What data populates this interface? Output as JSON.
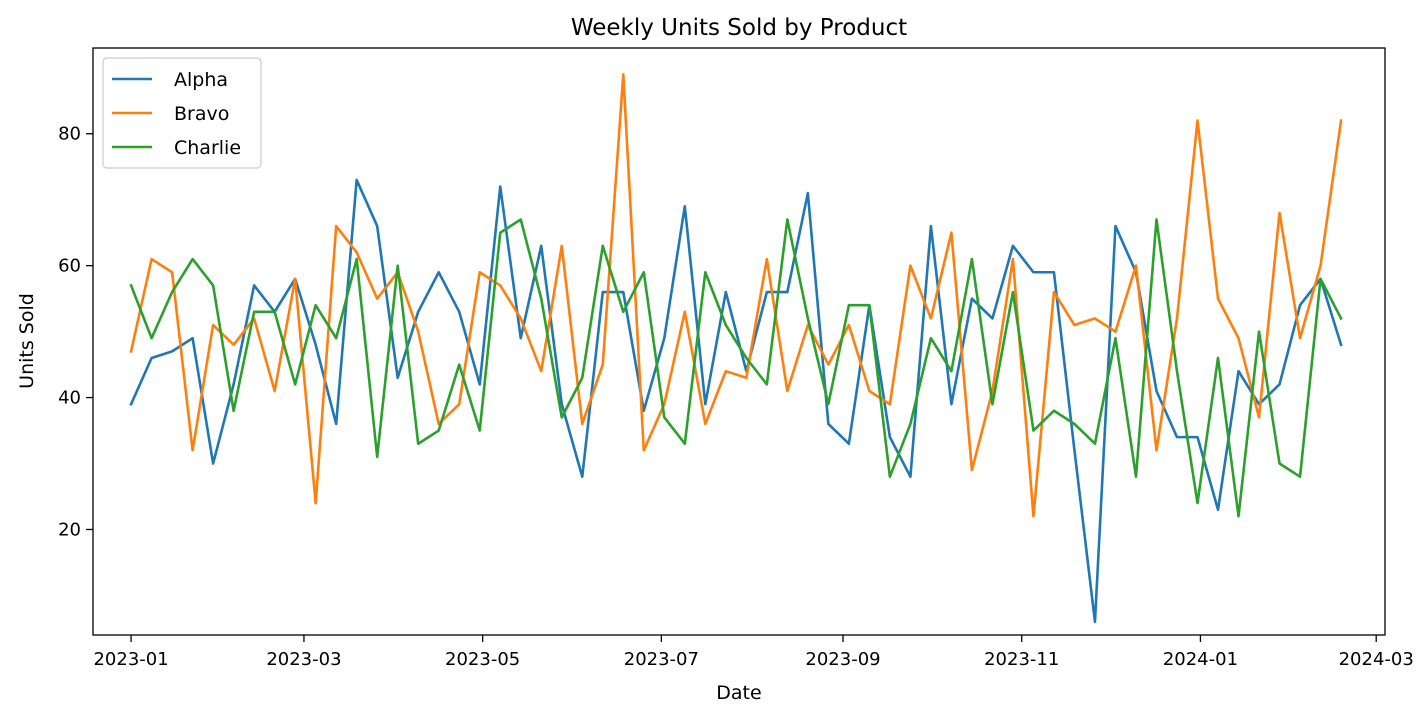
{
  "chart_data": {
    "type": "line",
    "title": "Weekly Units Sold by Product",
    "xlabel": "Date",
    "ylabel": "Units Sold",
    "x_start": "2023-01-01",
    "x": [
      "2023-01-01",
      "2023-01-08",
      "2023-01-15",
      "2023-01-22",
      "2023-01-29",
      "2023-02-05",
      "2023-02-12",
      "2023-02-19",
      "2023-02-26",
      "2023-03-05",
      "2023-03-12",
      "2023-03-19",
      "2023-03-26",
      "2023-04-02",
      "2023-04-09",
      "2023-04-16",
      "2023-04-23",
      "2023-04-30",
      "2023-05-07",
      "2023-05-14",
      "2023-05-21",
      "2023-05-28",
      "2023-06-04",
      "2023-06-11",
      "2023-06-18",
      "2023-06-25",
      "2023-07-02",
      "2023-07-09",
      "2023-07-16",
      "2023-07-23",
      "2023-07-30",
      "2023-08-06",
      "2023-08-13",
      "2023-08-20",
      "2023-08-27",
      "2023-09-03",
      "2023-09-10",
      "2023-09-17",
      "2023-09-24",
      "2023-10-01",
      "2023-10-08",
      "2023-10-15",
      "2023-10-22",
      "2023-10-29",
      "2023-11-05",
      "2023-11-12",
      "2023-11-19",
      "2023-11-26",
      "2023-12-03",
      "2023-12-10",
      "2023-12-17",
      "2023-12-24",
      "2023-12-31",
      "2024-01-07",
      "2024-01-14",
      "2024-01-21",
      "2024-01-28",
      "2024-02-04",
      "2024-02-11",
      "2024-02-18"
    ],
    "xlim": [
      "2022-12-19",
      "2024-03-04"
    ],
    "ylim": [
      4,
      93
    ],
    "x_ticks": [
      "2023-01",
      "2023-03",
      "2023-05",
      "2023-07",
      "2023-09",
      "2023-11",
      "2024-01",
      "2024-03"
    ],
    "y_ticks": [
      20,
      40,
      60,
      80
    ],
    "grid": false,
    "legend_position": "top-left",
    "series": [
      {
        "name": "Alpha",
        "color": "#1f77b4",
        "values": [
          39,
          46,
          47,
          49,
          30,
          42,
          57,
          53,
          58,
          48,
          36,
          73,
          66,
          43,
          53,
          59,
          53,
          42,
          72,
          49,
          63,
          39,
          28,
          56,
          56,
          38,
          49,
          69,
          39,
          56,
          44,
          56,
          56,
          71,
          36,
          33,
          54,
          34,
          28,
          66,
          39,
          55,
          52,
          63,
          59,
          59,
          32,
          6,
          66,
          59,
          41,
          34,
          34,
          23,
          44,
          39,
          42,
          54,
          58,
          48
        ]
      },
      {
        "name": "Bravo",
        "color": "#ff7f0e",
        "values": [
          47,
          61,
          59,
          32,
          51,
          48,
          52,
          41,
          58,
          24,
          66,
          62,
          55,
          59,
          50,
          36,
          39,
          59,
          57,
          52,
          44,
          63,
          36,
          45,
          89,
          32,
          39,
          53,
          36,
          44,
          43,
          61,
          41,
          51,
          45,
          51,
          41,
          39,
          60,
          52,
          65,
          29,
          41,
          61,
          22,
          56,
          51,
          52,
          50,
          60,
          32,
          52,
          82,
          55,
          49,
          37,
          68,
          49,
          60,
          82
        ]
      },
      {
        "name": "Charlie",
        "color": "#2ca02c",
        "values": [
          57,
          49,
          56,
          61,
          57,
          38,
          53,
          53,
          42,
          54,
          49,
          61,
          31,
          60,
          33,
          35,
          45,
          35,
          65,
          67,
          55,
          37,
          43,
          63,
          53,
          59,
          37,
          33,
          59,
          51,
          46,
          42,
          67,
          52,
          39,
          54,
          54,
          28,
          36,
          49,
          44,
          61,
          39,
          56,
          35,
          38,
          36,
          33,
          49,
          28,
          67,
          44,
          24,
          46,
          22,
          50,
          30,
          28,
          58,
          52
        ]
      }
    ]
  }
}
